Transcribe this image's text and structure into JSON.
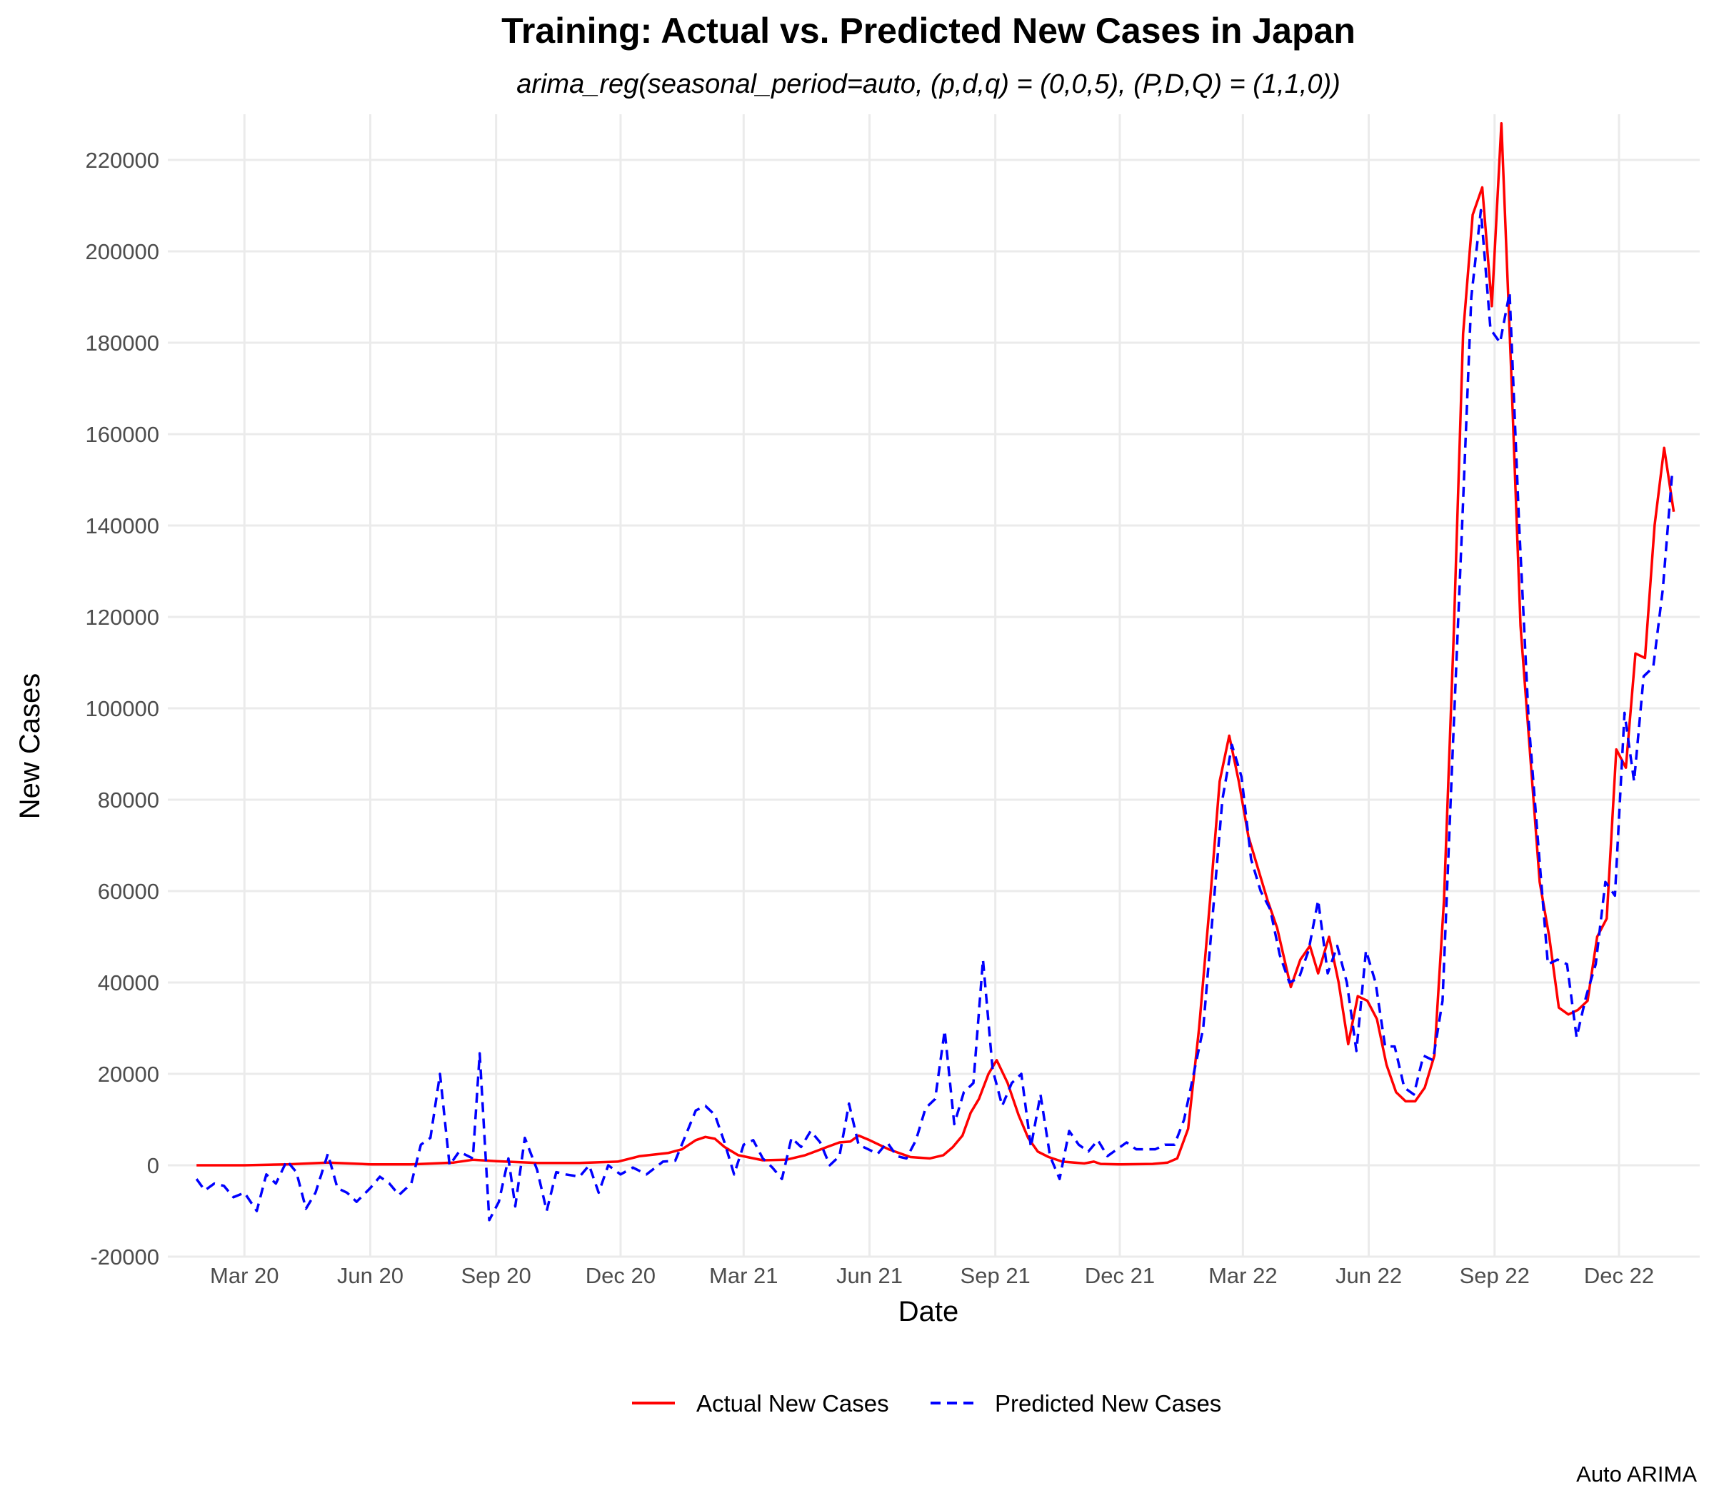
{
  "chart_data": {
    "type": "line",
    "title": "Training: Actual vs. Predicted New Cases in Japan",
    "subtitle": "arima_reg(seasonal_period=auto, (p,d,q) = (0,0,5), (P,D,Q) = (1,1,0))",
    "xlabel": "Date",
    "ylabel": "New Cases",
    "caption": "Auto ARIMA",
    "legend_position": "bottom",
    "grid": true,
    "xlim": [
      "2020-01-05",
      "2023-01-29"
    ],
    "ylim": [
      -20000,
      230000
    ],
    "x_ticks": [
      {
        "date": "2020-03-01",
        "label": "Mar 20"
      },
      {
        "date": "2020-06-01",
        "label": "Jun 20"
      },
      {
        "date": "2020-09-01",
        "label": "Sep 20"
      },
      {
        "date": "2020-12-01",
        "label": "Dec 20"
      },
      {
        "date": "2021-03-01",
        "label": "Mar 21"
      },
      {
        "date": "2021-06-01",
        "label": "Jun 21"
      },
      {
        "date": "2021-09-01",
        "label": "Sep 21"
      },
      {
        "date": "2021-12-01",
        "label": "Dec 21"
      },
      {
        "date": "2022-03-01",
        "label": "Mar 22"
      },
      {
        "date": "2022-06-01",
        "label": "Jun 22"
      },
      {
        "date": "2022-09-01",
        "label": "Sep 22"
      },
      {
        "date": "2022-12-01",
        "label": "Dec 22"
      }
    ],
    "y_ticks": [
      {
        "value": -20000,
        "label": "-20000"
      },
      {
        "value": 0,
        "label": "0"
      },
      {
        "value": 20000,
        "label": "20000"
      },
      {
        "value": 40000,
        "label": "40000"
      },
      {
        "value": 60000,
        "label": "60000"
      },
      {
        "value": 80000,
        "label": "80000"
      },
      {
        "value": 100000,
        "label": "100000"
      },
      {
        "value": 120000,
        "label": "120000"
      },
      {
        "value": 140000,
        "label": "140000"
      },
      {
        "value": 160000,
        "label": "160000"
      },
      {
        "value": 180000,
        "label": "180000"
      },
      {
        "value": 200000,
        "label": "200000"
      },
      {
        "value": 220000,
        "label": "220000"
      }
    ],
    "series": [
      {
        "name": "Actual New Cases",
        "color": "#ff0000",
        "dash": "solid",
        "points": [
          [
            "2020-01-26",
            0
          ],
          [
            "2020-03-01",
            0
          ],
          [
            "2020-04-01",
            200
          ],
          [
            "2020-05-01",
            600
          ],
          [
            "2020-06-01",
            200
          ],
          [
            "2020-07-01",
            200
          ],
          [
            "2020-08-01",
            600
          ],
          [
            "2020-08-15",
            1200
          ],
          [
            "2020-09-01",
            900
          ],
          [
            "2020-10-01",
            500
          ],
          [
            "2020-11-01",
            500
          ],
          [
            "2020-11-29",
            800
          ],
          [
            "2020-12-15",
            2000
          ],
          [
            "2021-01-05",
            2700
          ],
          [
            "2021-01-15",
            3500
          ],
          [
            "2021-01-25",
            5500
          ],
          [
            "2021-02-01",
            6200
          ],
          [
            "2021-02-08",
            5800
          ],
          [
            "2021-02-15",
            4000
          ],
          [
            "2021-02-25",
            2200
          ],
          [
            "2021-03-15",
            1100
          ],
          [
            "2021-04-01",
            1200
          ],
          [
            "2021-04-15",
            2200
          ],
          [
            "2021-05-01",
            4000
          ],
          [
            "2021-05-10",
            5000
          ],
          [
            "2021-05-18",
            5200
          ],
          [
            "2021-05-24",
            6500
          ],
          [
            "2021-06-01",
            5500
          ],
          [
            "2021-06-15",
            3500
          ],
          [
            "2021-07-01",
            1800
          ],
          [
            "2021-07-15",
            1500
          ],
          [
            "2021-07-25",
            2200
          ],
          [
            "2021-08-01",
            4000
          ],
          [
            "2021-08-08",
            6500
          ],
          [
            "2021-08-14",
            11500
          ],
          [
            "2021-08-20",
            14500
          ],
          [
            "2021-08-27",
            20000
          ],
          [
            "2021-09-02",
            23000
          ],
          [
            "2021-09-10",
            18000
          ],
          [
            "2021-09-18",
            11000
          ],
          [
            "2021-09-25",
            6000
          ],
          [
            "2021-10-02",
            3000
          ],
          [
            "2021-10-10",
            1800
          ],
          [
            "2021-10-20",
            800
          ],
          [
            "2021-11-05",
            400
          ],
          [
            "2021-11-12",
            800
          ],
          [
            "2021-11-17",
            300
          ],
          [
            "2021-12-01",
            200
          ],
          [
            "2021-12-25",
            300
          ],
          [
            "2022-01-05",
            600
          ],
          [
            "2022-01-12",
            1500
          ],
          [
            "2022-01-20",
            8000
          ],
          [
            "2022-01-28",
            30000
          ],
          [
            "2022-02-05",
            58000
          ],
          [
            "2022-02-12",
            84000
          ],
          [
            "2022-02-19",
            94000
          ],
          [
            "2022-02-26",
            84000
          ],
          [
            "2022-03-05",
            72000
          ],
          [
            "2022-03-12",
            65000
          ],
          [
            "2022-03-19",
            58000
          ],
          [
            "2022-03-26",
            52000
          ],
          [
            "2022-04-05",
            39000
          ],
          [
            "2022-04-12",
            45000
          ],
          [
            "2022-04-19",
            48000
          ],
          [
            "2022-04-25",
            42000
          ],
          [
            "2022-05-03",
            50000
          ],
          [
            "2022-05-10",
            40000
          ],
          [
            "2022-05-17",
            26500
          ],
          [
            "2022-05-24",
            37000
          ],
          [
            "2022-05-31",
            36000
          ],
          [
            "2022-06-07",
            32000
          ],
          [
            "2022-06-14",
            22000
          ],
          [
            "2022-06-21",
            16000
          ],
          [
            "2022-06-28",
            14000
          ],
          [
            "2022-07-05",
            14000
          ],
          [
            "2022-07-12",
            17000
          ],
          [
            "2022-07-19",
            24000
          ],
          [
            "2022-07-26",
            58000
          ],
          [
            "2022-08-02",
            115000
          ],
          [
            "2022-08-09",
            182000
          ],
          [
            "2022-08-16",
            208000
          ],
          [
            "2022-08-23",
            214000
          ],
          [
            "2022-08-30",
            188000
          ],
          [
            "2022-09-06",
            228000
          ],
          [
            "2022-09-13",
            175000
          ],
          [
            "2022-09-20",
            118000
          ],
          [
            "2022-09-27",
            90000
          ],
          [
            "2022-10-04",
            62000
          ],
          [
            "2022-10-11",
            50000
          ],
          [
            "2022-10-18",
            34500
          ],
          [
            "2022-10-25",
            33000
          ],
          [
            "2022-11-01",
            34000
          ],
          [
            "2022-11-08",
            36000
          ],
          [
            "2022-11-15",
            50000
          ],
          [
            "2022-11-22",
            54000
          ],
          [
            "2022-11-29",
            91000
          ],
          [
            "2022-12-06",
            87000
          ],
          [
            "2022-12-13",
            112000
          ],
          [
            "2022-12-20",
            111000
          ],
          [
            "2022-12-27",
            140000
          ],
          [
            "2023-01-03",
            157000
          ],
          [
            "2023-01-10",
            143000
          ]
        ]
      },
      {
        "name": "Predicted New Cases",
        "color": "#0000ff",
        "dash": "dashed",
        "points": [
          [
            "2020-01-26",
            -3000
          ],
          [
            "2020-02-01",
            -5500
          ],
          [
            "2020-02-08",
            -4000
          ],
          [
            "2020-02-15",
            -4500
          ],
          [
            "2020-02-22",
            -7000
          ],
          [
            "2020-03-01",
            -6000
          ],
          [
            "2020-03-10",
            -10000
          ],
          [
            "2020-03-17",
            -2000
          ],
          [
            "2020-03-24",
            -4000
          ],
          [
            "2020-04-01",
            1000
          ],
          [
            "2020-04-08",
            -1500
          ],
          [
            "2020-04-15",
            -9500
          ],
          [
            "2020-04-22",
            -6000
          ],
          [
            "2020-05-01",
            2500
          ],
          [
            "2020-05-08",
            -5000
          ],
          [
            "2020-05-15",
            -6000
          ],
          [
            "2020-05-22",
            -8000
          ],
          [
            "2020-06-01",
            -5000
          ],
          [
            "2020-06-08",
            -2500
          ],
          [
            "2020-06-15",
            -4000
          ],
          [
            "2020-06-22",
            -6500
          ],
          [
            "2020-07-01",
            -4000
          ],
          [
            "2020-07-08",
            4500
          ],
          [
            "2020-07-15",
            6000
          ],
          [
            "2020-07-22",
            20000
          ],
          [
            "2020-07-29",
            0
          ],
          [
            "2020-08-05",
            3000
          ],
          [
            "2020-08-15",
            1500
          ],
          [
            "2020-08-20",
            24500
          ],
          [
            "2020-08-27",
            -12000
          ],
          [
            "2020-09-03",
            -8000
          ],
          [
            "2020-09-10",
            1500
          ],
          [
            "2020-09-15",
            -9000
          ],
          [
            "2020-09-22",
            6000
          ],
          [
            "2020-10-01",
            -1000
          ],
          [
            "2020-10-08",
            -10000
          ],
          [
            "2020-10-15",
            -1500
          ],
          [
            "2020-10-22",
            -2000
          ],
          [
            "2020-11-01",
            -2500
          ],
          [
            "2020-11-08",
            0
          ],
          [
            "2020-11-15",
            -6000
          ],
          [
            "2020-11-22",
            0
          ],
          [
            "2020-12-01",
            -2000
          ],
          [
            "2020-12-10",
            -500
          ],
          [
            "2020-12-20",
            -2000
          ],
          [
            "2021-01-01",
            800
          ],
          [
            "2021-01-10",
            1000
          ],
          [
            "2021-01-25",
            12000
          ],
          [
            "2021-02-01",
            13000
          ],
          [
            "2021-02-08",
            11000
          ],
          [
            "2021-02-15",
            5000
          ],
          [
            "2021-02-22",
            -2000
          ],
          [
            "2021-03-01",
            4500
          ],
          [
            "2021-03-08",
            5500
          ],
          [
            "2021-03-15",
            1500
          ],
          [
            "2021-03-22",
            -500
          ],
          [
            "2021-03-29",
            -3000
          ],
          [
            "2021-04-05",
            6000
          ],
          [
            "2021-04-12",
            4000
          ],
          [
            "2021-04-19",
            7500
          ],
          [
            "2021-04-26",
            5000
          ],
          [
            "2021-05-03",
            0
          ],
          [
            "2021-05-10",
            2000
          ],
          [
            "2021-05-17",
            13500
          ],
          [
            "2021-05-24",
            4500
          ],
          [
            "2021-05-31",
            3500
          ],
          [
            "2021-06-07",
            2500
          ],
          [
            "2021-06-14",
            5000
          ],
          [
            "2021-06-21",
            2000
          ],
          [
            "2021-06-28",
            1500
          ],
          [
            "2021-07-05",
            5500
          ],
          [
            "2021-07-12",
            12500
          ],
          [
            "2021-07-19",
            14500
          ],
          [
            "2021-07-26",
            29500
          ],
          [
            "2021-08-02",
            9000
          ],
          [
            "2021-08-09",
            16000
          ],
          [
            "2021-08-16",
            18000
          ],
          [
            "2021-08-23",
            45000
          ],
          [
            "2021-08-30",
            21000
          ],
          [
            "2021-09-06",
            13000
          ],
          [
            "2021-09-13",
            18000
          ],
          [
            "2021-09-20",
            20000
          ],
          [
            "2021-09-27",
            4000
          ],
          [
            "2021-10-04",
            15500
          ],
          [
            "2021-10-11",
            2000
          ],
          [
            "2021-10-18",
            -3000
          ],
          [
            "2021-10-25",
            7500
          ],
          [
            "2021-11-01",
            4500
          ],
          [
            "2021-11-08",
            3000
          ],
          [
            "2021-11-15",
            5500
          ],
          [
            "2021-11-22",
            2000
          ],
          [
            "2021-11-29",
            3500
          ],
          [
            "2021-12-06",
            5000
          ],
          [
            "2021-12-13",
            3500
          ],
          [
            "2021-12-20",
            3500
          ],
          [
            "2021-12-27",
            3500
          ],
          [
            "2022-01-03",
            4500
          ],
          [
            "2022-01-10",
            4500
          ],
          [
            "2022-01-17",
            10000
          ],
          [
            "2022-01-24",
            20000
          ],
          [
            "2022-01-31",
            30000
          ],
          [
            "2022-02-07",
            55000
          ],
          [
            "2022-02-14",
            80000
          ],
          [
            "2022-02-21",
            92000
          ],
          [
            "2022-02-28",
            85000
          ],
          [
            "2022-03-07",
            67000
          ],
          [
            "2022-03-14",
            60000
          ],
          [
            "2022-03-21",
            56000
          ],
          [
            "2022-03-28",
            46000
          ],
          [
            "2022-04-04",
            40000
          ],
          [
            "2022-04-11",
            41000
          ],
          [
            "2022-04-18",
            47000
          ],
          [
            "2022-04-25",
            58000
          ],
          [
            "2022-05-02",
            42000
          ],
          [
            "2022-05-09",
            48000
          ],
          [
            "2022-05-16",
            40000
          ],
          [
            "2022-05-23",
            25000
          ],
          [
            "2022-05-30",
            47000
          ],
          [
            "2022-06-06",
            40000
          ],
          [
            "2022-06-13",
            26000
          ],
          [
            "2022-06-20",
            26000
          ],
          [
            "2022-06-27",
            17000
          ],
          [
            "2022-07-04",
            15500
          ],
          [
            "2022-07-11",
            24000
          ],
          [
            "2022-07-18",
            23000
          ],
          [
            "2022-07-25",
            36000
          ],
          [
            "2022-08-01",
            88000
          ],
          [
            "2022-08-08",
            138000
          ],
          [
            "2022-08-15",
            190000
          ],
          [
            "2022-08-22",
            209000
          ],
          [
            "2022-08-29",
            183000
          ],
          [
            "2022-09-05",
            180000
          ],
          [
            "2022-09-12",
            191000
          ],
          [
            "2022-09-19",
            140000
          ],
          [
            "2022-09-26",
            97000
          ],
          [
            "2022-10-03",
            70000
          ],
          [
            "2022-10-10",
            44000
          ],
          [
            "2022-10-17",
            45000
          ],
          [
            "2022-10-24",
            44000
          ],
          [
            "2022-10-31",
            28000
          ],
          [
            "2022-11-07",
            37000
          ],
          [
            "2022-11-14",
            44000
          ],
          [
            "2022-11-21",
            62000
          ],
          [
            "2022-11-28",
            59000
          ],
          [
            "2022-12-05",
            99000
          ],
          [
            "2022-12-12",
            84000
          ],
          [
            "2022-12-19",
            107000
          ],
          [
            "2022-12-26",
            109000
          ],
          [
            "2023-01-02",
            126000
          ],
          [
            "2023-01-09",
            152000
          ]
        ]
      }
    ]
  }
}
